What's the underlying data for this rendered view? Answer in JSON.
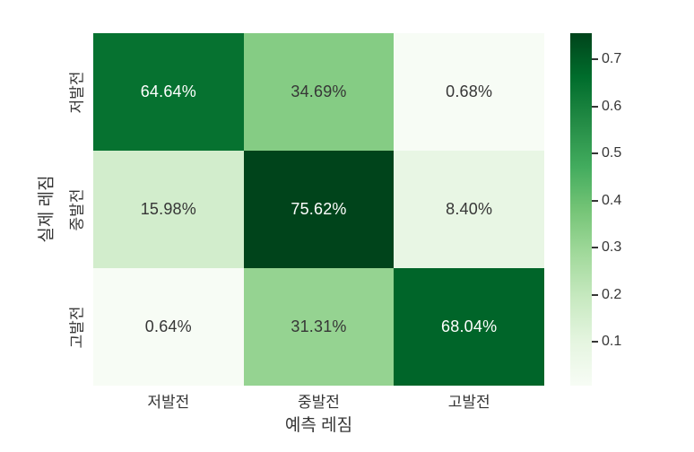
{
  "figure": {
    "background": "#ffffff",
    "text_color": "#363636"
  },
  "chart_data": {
    "type": "heatmap",
    "title": "",
    "xlabel": "예측 레짐",
    "ylabel": "실제 레짐",
    "x_categories": [
      "저발전",
      "중발전",
      "고발전"
    ],
    "y_categories": [
      "저발전",
      "중발전",
      "고발전"
    ],
    "rows": [
      {
        "label": "저발전",
        "values": [
          0.6464,
          0.3469,
          0.0068
        ],
        "cell_labels": [
          "64.64%",
          "34.69%",
          "0.68%"
        ]
      },
      {
        "label": "중발전",
        "values": [
          0.1598,
          0.7562,
          0.084
        ],
        "cell_labels": [
          "15.98%",
          "75.62%",
          "8.40%"
        ]
      },
      {
        "label": "고발전",
        "values": [
          0.0064,
          0.3131,
          0.6804
        ],
        "cell_labels": [
          "0.64%",
          "31.31%",
          "68.04%"
        ]
      }
    ],
    "colormap": {
      "name": "Greens",
      "stops": [
        "#f7fcf5",
        "#e5f5e0",
        "#c7e9c0",
        "#a1d99b",
        "#74c476",
        "#41ab5d",
        "#238b45",
        "#006d2c",
        "#00441b"
      ]
    },
    "vmin": 0.0064,
    "vmax": 0.7562,
    "colorbar_ticks": [
      "0.1",
      "0.2",
      "0.3",
      "0.4",
      "0.5",
      "0.6",
      "0.7"
    ],
    "cell_text_light": "#ffffff",
    "cell_text_dark": "#363636",
    "legend_position": "right-colorbar",
    "grid": false
  }
}
